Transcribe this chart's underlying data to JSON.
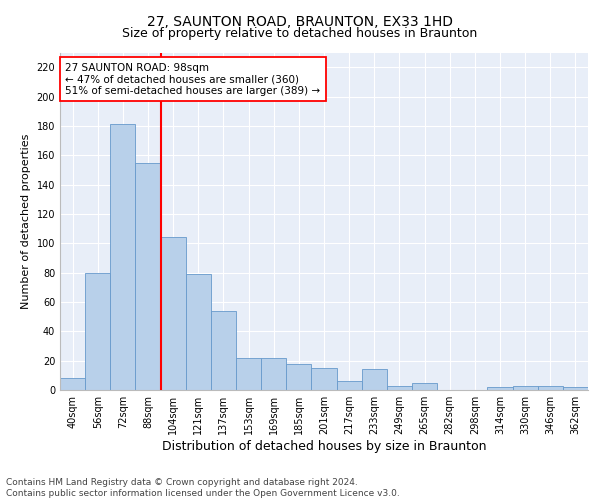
{
  "title": "27, SAUNTON ROAD, BRAUNTON, EX33 1HD",
  "subtitle": "Size of property relative to detached houses in Braunton",
  "xlabel": "Distribution of detached houses by size in Braunton",
  "ylabel": "Number of detached properties",
  "categories": [
    "40sqm",
    "56sqm",
    "72sqm",
    "88sqm",
    "104sqm",
    "121sqm",
    "137sqm",
    "153sqm",
    "169sqm",
    "185sqm",
    "201sqm",
    "217sqm",
    "233sqm",
    "249sqm",
    "265sqm",
    "282sqm",
    "298sqm",
    "314sqm",
    "330sqm",
    "346sqm",
    "362sqm"
  ],
  "values": [
    8,
    80,
    181,
    155,
    104,
    79,
    54,
    22,
    22,
    18,
    15,
    6,
    14,
    3,
    5,
    0,
    0,
    2,
    3,
    3,
    2
  ],
  "bar_color": "#b8d0ea",
  "bar_edge_color": "#6699cc",
  "vline_color": "red",
  "vline_x_index": 3.5,
  "annotation_text": "27 SAUNTON ROAD: 98sqm\n← 47% of detached houses are smaller (360)\n51% of semi-detached houses are larger (389) →",
  "annotation_box_color": "white",
  "annotation_box_edge_color": "red",
  "ylim": [
    0,
    230
  ],
  "yticks": [
    0,
    20,
    40,
    60,
    80,
    100,
    120,
    140,
    160,
    180,
    200,
    220
  ],
  "background_color": "#e8eef8",
  "footer_line1": "Contains HM Land Registry data © Crown copyright and database right 2024.",
  "footer_line2": "Contains public sector information licensed under the Open Government Licence v3.0.",
  "title_fontsize": 10,
  "subtitle_fontsize": 9,
  "xlabel_fontsize": 9,
  "ylabel_fontsize": 8,
  "tick_fontsize": 7,
  "annotation_fontsize": 7.5,
  "footer_fontsize": 6.5
}
